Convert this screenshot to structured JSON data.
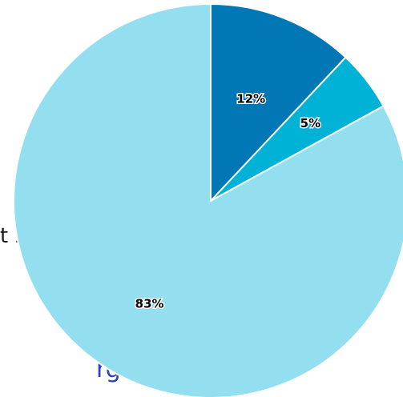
{
  "background": {
    "partial_text_1": "t 2022",
    "partial_text_2": "rgeables"
  },
  "chart_data": {
    "type": "pie",
    "slices": [
      {
        "value": 12,
        "label": "12%",
        "color": "#0277b6"
      },
      {
        "value": 5,
        "label": "5%",
        "color": "#00b2d6"
      },
      {
        "value": 83,
        "label": "83%",
        "color": "#93dfef"
      }
    ],
    "start_angle": "12 o'clock",
    "direction": "clockwise",
    "slice_border_color": "#ffffff"
  }
}
